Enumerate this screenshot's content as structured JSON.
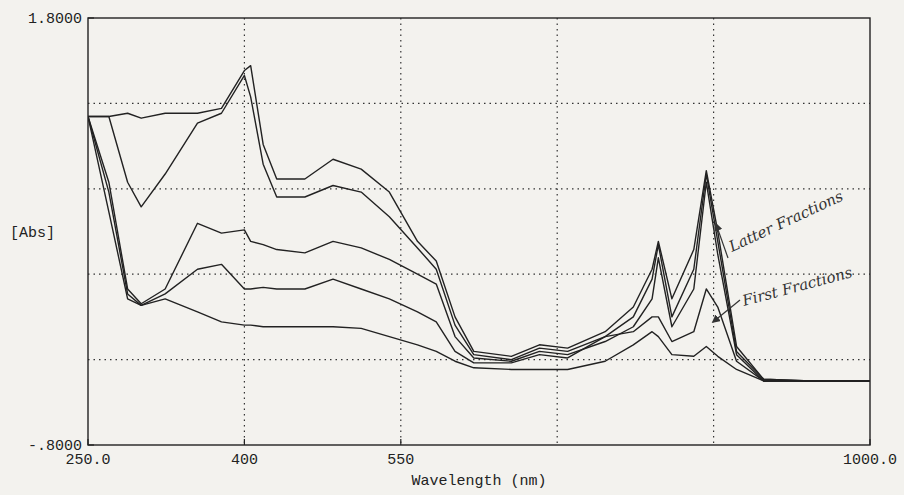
{
  "chart_data": {
    "type": "line",
    "x_label": "Wavelength (nm)",
    "y_label": "[Abs]",
    "annotations": [
      "Latter Fractions",
      "First Fractions"
    ],
    "x": [
      250,
      270,
      288,
      301,
      324,
      355,
      378,
      400,
      406,
      418,
      431,
      458,
      485,
      512,
      539,
      566,
      584,
      602,
      620,
      656,
      683,
      710,
      746,
      773,
      791,
      797,
      810,
      831,
      843,
      854,
      872,
      898,
      943,
      970,
      1000
    ],
    "series": [
      {
        "color": "#222222",
        "line_style": "solid",
        "values": [
          1.2,
          1.2,
          1.22,
          1.19,
          1.22,
          1.22,
          1.25,
          1.48,
          1.51,
          1.03,
          0.82,
          0.82,
          0.94,
          0.88,
          0.74,
          0.44,
          0.32,
          -0.02,
          -0.23,
          -0.26,
          -0.19,
          -0.21,
          -0.11,
          0.04,
          0.27,
          0.44,
          0.09,
          0.39,
          0.87,
          0.5,
          -0.2,
          -0.4,
          -0.41,
          -0.41,
          -0.41
        ]
      },
      {
        "color": "#222222",
        "line_style": "solid",
        "values": [
          1.2,
          1.2,
          0.8,
          0.65,
          0.85,
          1.16,
          1.22,
          1.45,
          1.32,
          0.91,
          0.71,
          0.71,
          0.78,
          0.74,
          0.59,
          0.4,
          0.27,
          -0.07,
          -0.25,
          -0.28,
          -0.21,
          -0.23,
          -0.14,
          -0.02,
          0.21,
          0.42,
          -0.02,
          0.27,
          0.85,
          0.44,
          -0.23,
          -0.4,
          -0.41,
          -0.41,
          -0.41
        ]
      },
      {
        "color": "#222222",
        "line_style": "solid",
        "values": [
          1.2,
          0.8,
          0.15,
          0.06,
          0.15,
          0.55,
          0.49,
          0.51,
          0.44,
          0.42,
          0.39,
          0.37,
          0.44,
          0.4,
          0.33,
          0.24,
          0.18,
          -0.14,
          -0.27,
          -0.29,
          -0.23,
          -0.25,
          -0.17,
          -0.08,
          0.09,
          0.34,
          -0.08,
          0.15,
          0.8,
          0.36,
          -0.25,
          -0.41,
          -0.41,
          -0.41,
          -0.41
        ]
      },
      {
        "color": "#222222",
        "line_style": "solid",
        "values": [
          1.2,
          0.74,
          0.12,
          0.05,
          0.12,
          0.27,
          0.3,
          0.15,
          0.15,
          0.16,
          0.15,
          0.15,
          0.21,
          0.15,
          0.09,
          0.01,
          -0.05,
          -0.23,
          -0.3,
          -0.3,
          -0.25,
          -0.27,
          -0.14,
          -0.11,
          -0.02,
          -0.02,
          -0.17,
          -0.11,
          0.15,
          0.04,
          -0.29,
          -0.41,
          -0.41,
          -0.41,
          -0.41
        ]
      },
      {
        "color": "#222222",
        "line_style": "solid",
        "values": [
          1.2,
          0.62,
          0.09,
          0.05,
          0.09,
          0.01,
          -0.05,
          -0.07,
          -0.07,
          -0.08,
          -0.08,
          -0.08,
          -0.08,
          -0.09,
          -0.14,
          -0.19,
          -0.23,
          -0.29,
          -0.33,
          -0.34,
          -0.34,
          -0.34,
          -0.29,
          -0.19,
          -0.11,
          -0.14,
          -0.25,
          -0.26,
          -0.2,
          -0.26,
          -0.34,
          -0.41,
          -0.41,
          -0.41,
          -0.41
        ]
      }
    ],
    "xlim": [
      250,
      1000
    ],
    "xticks": [
      {
        "value": 250,
        "label": "250.0"
      },
      400,
      550,
      {
        "value": 1000,
        "label": "1000.0"
      }
    ],
    "ylim": [
      -0.8,
      1.8
    ],
    "yticks": [
      {
        "value": -0.8,
        "label": "-.8000"
      },
      {
        "value": 1.8,
        "label": "1.8000"
      }
    ],
    "grid": true
  }
}
